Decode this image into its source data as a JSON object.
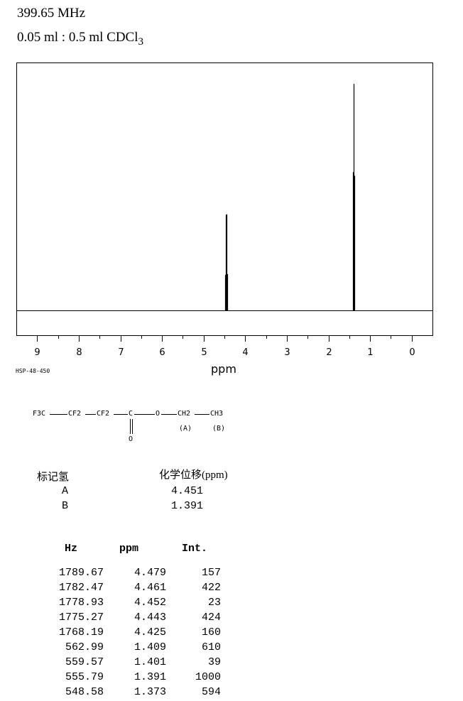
{
  "header": {
    "frequency": "399.65 MHz",
    "sample_prefix": "0.05 ml : 0.5 ml CDCl",
    "sample_subscript": "3"
  },
  "chart_data": {
    "type": "line",
    "xlabel": "ppm",
    "xlim": [
      9.5,
      -0.5
    ],
    "x_ticks": [
      "9",
      "8",
      "7",
      "6",
      "5",
      "4",
      "3",
      "2",
      "1",
      "0"
    ],
    "ylim": [
      0,
      1000
    ],
    "grid": false,
    "peaks": [
      {
        "ppm": 4.479,
        "intensity": 157
      },
      {
        "ppm": 4.461,
        "intensity": 422
      },
      {
        "ppm": 4.452,
        "intensity": 23
      },
      {
        "ppm": 4.443,
        "intensity": 424
      },
      {
        "ppm": 4.425,
        "intensity": 160
      },
      {
        "ppm": 1.409,
        "intensity": 610
      },
      {
        "ppm": 1.401,
        "intensity": 39
      },
      {
        "ppm": 1.391,
        "intensity": 1000
      },
      {
        "ppm": 1.373,
        "intensity": 594
      }
    ],
    "line_color": "#000000"
  },
  "spectrum_code": "HSP-48-450",
  "structure": {
    "formula_parts": [
      "F3C",
      "CF2",
      "CF2",
      "C",
      "O",
      "CH2",
      "CH3"
    ],
    "carbonyl_oxygen": "O",
    "labels": [
      "(A)",
      "(B)"
    ]
  },
  "assignment": {
    "header_label": "标记氢",
    "header_shift": "化学位移(ppm)",
    "rows": [
      {
        "label": "A",
        "shift": "4.451"
      },
      {
        "label": "B",
        "shift": "1.391"
      }
    ]
  },
  "peak_table": {
    "headers": [
      "Hz",
      "ppm",
      "Int."
    ],
    "rows": [
      [
        "1789.67",
        "4.479",
        "157"
      ],
      [
        "1782.47",
        "4.461",
        "422"
      ],
      [
        "1778.93",
        "4.452",
        "23"
      ],
      [
        "1775.27",
        "4.443",
        "424"
      ],
      [
        "1768.19",
        "4.425",
        "160"
      ],
      [
        "562.99",
        "1.409",
        "610"
      ],
      [
        "559.57",
        "1.401",
        "39"
      ],
      [
        "555.79",
        "1.391",
        "1000"
      ],
      [
        "548.58",
        "1.373",
        "594"
      ]
    ]
  }
}
